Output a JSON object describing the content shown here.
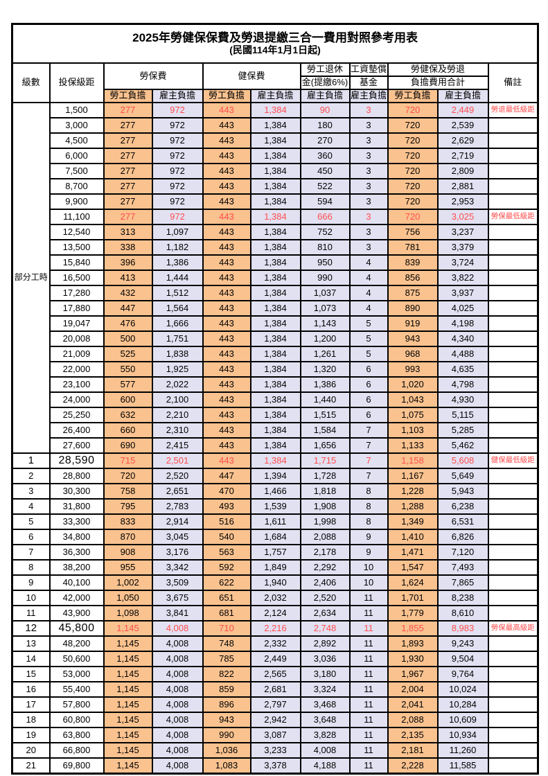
{
  "title": "2025年勞健保保費及勞退提繳三合一費用對照參考用表",
  "subtitle": "(民國114年1月1日起)",
  "colors": {
    "worker_bg": "#F9C28F",
    "employer_bg": "#E2E1F2",
    "red": "#FF4D4D",
    "border": "#000000"
  },
  "header": {
    "level": "級數",
    "bracket": "投保級距",
    "labor_insurance": "勞保費",
    "health_insurance": "健保費",
    "pension_line1": "勞工退休",
    "pension_line2": "金(提繳6%)",
    "wage_fund_line1": "工資墊償",
    "wage_fund_line2": "基金",
    "total_line1": "勞健保及勞退",
    "total_line2": "負擔費用合計",
    "remark": "備註",
    "worker_share": "勞工負擔",
    "employer_share": "雇主負擔"
  },
  "part_time": {
    "label": "部分工時",
    "rowspan": 23
  },
  "rows": [
    {
      "level": "",
      "bracket": "1,500",
      "liw": "277",
      "lie": "972",
      "hiw": "443",
      "hie": "1,384",
      "pen": "90",
      "fund": "3",
      "tw": "720",
      "te": "2,449",
      "remark": "勞退最低級距",
      "hl": true
    },
    {
      "level": "",
      "bracket": "3,000",
      "liw": "277",
      "lie": "972",
      "hiw": "443",
      "hie": "1,384",
      "pen": "180",
      "fund": "3",
      "tw": "720",
      "te": "2,539",
      "remark": ""
    },
    {
      "level": "",
      "bracket": "4,500",
      "liw": "277",
      "lie": "972",
      "hiw": "443",
      "hie": "1,384",
      "pen": "270",
      "fund": "3",
      "tw": "720",
      "te": "2,629",
      "remark": ""
    },
    {
      "level": "",
      "bracket": "6,000",
      "liw": "277",
      "lie": "972",
      "hiw": "443",
      "hie": "1,384",
      "pen": "360",
      "fund": "3",
      "tw": "720",
      "te": "2,719",
      "remark": ""
    },
    {
      "level": "",
      "bracket": "7,500",
      "liw": "277",
      "lie": "972",
      "hiw": "443",
      "hie": "1,384",
      "pen": "450",
      "fund": "3",
      "tw": "720",
      "te": "2,809",
      "remark": ""
    },
    {
      "level": "",
      "bracket": "8,700",
      "liw": "277",
      "lie": "972",
      "hiw": "443",
      "hie": "1,384",
      "pen": "522",
      "fund": "3",
      "tw": "720",
      "te": "2,881",
      "remark": ""
    },
    {
      "level": "",
      "bracket": "9,900",
      "liw": "277",
      "lie": "972",
      "hiw": "443",
      "hie": "1,384",
      "pen": "594",
      "fund": "3",
      "tw": "720",
      "te": "2,953",
      "remark": ""
    },
    {
      "level": "",
      "bracket": "11,100",
      "liw": "277",
      "lie": "972",
      "hiw": "443",
      "hie": "1,384",
      "pen": "666",
      "fund": "3",
      "tw": "720",
      "te": "3,025",
      "remark": "勞保最低級距",
      "hl": true
    },
    {
      "level": "",
      "bracket": "12,540",
      "liw": "313",
      "lie": "1,097",
      "hiw": "443",
      "hie": "1,384",
      "pen": "752",
      "fund": "3",
      "tw": "756",
      "te": "3,237",
      "remark": ""
    },
    {
      "level": "",
      "bracket": "13,500",
      "liw": "338",
      "lie": "1,182",
      "hiw": "443",
      "hie": "1,384",
      "pen": "810",
      "fund": "3",
      "tw": "781",
      "te": "3,379",
      "remark": ""
    },
    {
      "level": "",
      "bracket": "15,840",
      "liw": "396",
      "lie": "1,386",
      "hiw": "443",
      "hie": "1,384",
      "pen": "950",
      "fund": "4",
      "tw": "839",
      "te": "3,724",
      "remark": ""
    },
    {
      "level": "",
      "bracket": "16,500",
      "liw": "413",
      "lie": "1,444",
      "hiw": "443",
      "hie": "1,384",
      "pen": "990",
      "fund": "4",
      "tw": "856",
      "te": "3,822",
      "remark": ""
    },
    {
      "level": "",
      "bracket": "17,280",
      "liw": "432",
      "lie": "1,512",
      "hiw": "443",
      "hie": "1,384",
      "pen": "1,037",
      "fund": "4",
      "tw": "875",
      "te": "3,937",
      "remark": ""
    },
    {
      "level": "",
      "bracket": "17,880",
      "liw": "447",
      "lie": "1,564",
      "hiw": "443",
      "hie": "1,384",
      "pen": "1,073",
      "fund": "4",
      "tw": "890",
      "te": "4,025",
      "remark": ""
    },
    {
      "level": "",
      "bracket": "19,047",
      "liw": "476",
      "lie": "1,666",
      "hiw": "443",
      "hie": "1,384",
      "pen": "1,143",
      "fund": "5",
      "tw": "919",
      "te": "4,198",
      "remark": ""
    },
    {
      "level": "",
      "bracket": "20,008",
      "liw": "500",
      "lie": "1,751",
      "hiw": "443",
      "hie": "1,384",
      "pen": "1,200",
      "fund": "5",
      "tw": "943",
      "te": "4,340",
      "remark": ""
    },
    {
      "level": "",
      "bracket": "21,009",
      "liw": "525",
      "lie": "1,838",
      "hiw": "443",
      "hie": "1,384",
      "pen": "1,261",
      "fund": "5",
      "tw": "968",
      "te": "4,488",
      "remark": ""
    },
    {
      "level": "",
      "bracket": "22,000",
      "liw": "550",
      "lie": "1,925",
      "hiw": "443",
      "hie": "1,384",
      "pen": "1,320",
      "fund": "6",
      "tw": "993",
      "te": "4,635",
      "remark": ""
    },
    {
      "level": "",
      "bracket": "23,100",
      "liw": "577",
      "lie": "2,022",
      "hiw": "443",
      "hie": "1,384",
      "pen": "1,386",
      "fund": "6",
      "tw": "1,020",
      "te": "4,798",
      "remark": ""
    },
    {
      "level": "",
      "bracket": "24,000",
      "liw": "600",
      "lie": "2,100",
      "hiw": "443",
      "hie": "1,384",
      "pen": "1,440",
      "fund": "6",
      "tw": "1,043",
      "te": "4,930",
      "remark": ""
    },
    {
      "level": "",
      "bracket": "25,250",
      "liw": "632",
      "lie": "2,210",
      "hiw": "443",
      "hie": "1,384",
      "pen": "1,515",
      "fund": "6",
      "tw": "1,075",
      "te": "5,115",
      "remark": ""
    },
    {
      "level": "",
      "bracket": "26,400",
      "liw": "660",
      "lie": "2,310",
      "hiw": "443",
      "hie": "1,384",
      "pen": "1,584",
      "fund": "7",
      "tw": "1,103",
      "te": "5,285",
      "remark": ""
    },
    {
      "level": "",
      "bracket": "27,600",
      "liw": "690",
      "lie": "2,415",
      "hiw": "443",
      "hie": "1,384",
      "pen": "1,656",
      "fund": "7",
      "tw": "1,133",
      "te": "5,462",
      "remark": ""
    },
    {
      "level": "1",
      "bracket": "28,590",
      "liw": "715",
      "lie": "2,501",
      "hiw": "443",
      "hie": "1,384",
      "pen": "1,715",
      "fund": "7",
      "tw": "1,158",
      "te": "5,608",
      "remark": "健保最低級距",
      "hl": true,
      "big": true
    },
    {
      "level": "2",
      "bracket": "28,800",
      "liw": "720",
      "lie": "2,520",
      "hiw": "447",
      "hie": "1,394",
      "pen": "1,728",
      "fund": "7",
      "tw": "1,167",
      "te": "5,649",
      "remark": ""
    },
    {
      "level": "3",
      "bracket": "30,300",
      "liw": "758",
      "lie": "2,651",
      "hiw": "470",
      "hie": "1,466",
      "pen": "1,818",
      "fund": "8",
      "tw": "1,228",
      "te": "5,943",
      "remark": ""
    },
    {
      "level": "4",
      "bracket": "31,800",
      "liw": "795",
      "lie": "2,783",
      "hiw": "493",
      "hie": "1,539",
      "pen": "1,908",
      "fund": "8",
      "tw": "1,288",
      "te": "6,238",
      "remark": ""
    },
    {
      "level": "5",
      "bracket": "33,300",
      "liw": "833",
      "lie": "2,914",
      "hiw": "516",
      "hie": "1,611",
      "pen": "1,998",
      "fund": "8",
      "tw": "1,349",
      "te": "6,531",
      "remark": ""
    },
    {
      "level": "6",
      "bracket": "34,800",
      "liw": "870",
      "lie": "3,045",
      "hiw": "540",
      "hie": "1,684",
      "pen": "2,088",
      "fund": "9",
      "tw": "1,410",
      "te": "6,826",
      "remark": ""
    },
    {
      "level": "7",
      "bracket": "36,300",
      "liw": "908",
      "lie": "3,176",
      "hiw": "563",
      "hie": "1,757",
      "pen": "2,178",
      "fund": "9",
      "tw": "1,471",
      "te": "7,120",
      "remark": ""
    },
    {
      "level": "8",
      "bracket": "38,200",
      "liw": "955",
      "lie": "3,342",
      "hiw": "592",
      "hie": "1,849",
      "pen": "2,292",
      "fund": "10",
      "tw": "1,547",
      "te": "7,493",
      "remark": ""
    },
    {
      "level": "9",
      "bracket": "40,100",
      "liw": "1,002",
      "lie": "3,509",
      "hiw": "622",
      "hie": "1,940",
      "pen": "2,406",
      "fund": "10",
      "tw": "1,624",
      "te": "7,865",
      "remark": ""
    },
    {
      "level": "10",
      "bracket": "42,000",
      "liw": "1,050",
      "lie": "3,675",
      "hiw": "651",
      "hie": "2,032",
      "pen": "2,520",
      "fund": "11",
      "tw": "1,701",
      "te": "8,238",
      "remark": ""
    },
    {
      "level": "11",
      "bracket": "43,900",
      "liw": "1,098",
      "lie": "3,841",
      "hiw": "681",
      "hie": "2,124",
      "pen": "2,634",
      "fund": "11",
      "tw": "1,779",
      "te": "8,610",
      "remark": ""
    },
    {
      "level": "12",
      "bracket": "45,800",
      "liw": "1,145",
      "lie": "4,008",
      "hiw": "710",
      "hie": "2,216",
      "pen": "2,748",
      "fund": "11",
      "tw": "1,855",
      "te": "8,983",
      "remark": "勞保最高級距",
      "hl": true,
      "big": true
    },
    {
      "level": "13",
      "bracket": "48,200",
      "liw": "1,145",
      "lie": "4,008",
      "hiw": "748",
      "hie": "2,332",
      "pen": "2,892",
      "fund": "11",
      "tw": "1,893",
      "te": "9,243",
      "remark": ""
    },
    {
      "level": "14",
      "bracket": "50,600",
      "liw": "1,145",
      "lie": "4,008",
      "hiw": "785",
      "hie": "2,449",
      "pen": "3,036",
      "fund": "11",
      "tw": "1,930",
      "te": "9,504",
      "remark": ""
    },
    {
      "level": "15",
      "bracket": "53,000",
      "liw": "1,145",
      "lie": "4,008",
      "hiw": "822",
      "hie": "2,565",
      "pen": "3,180",
      "fund": "11",
      "tw": "1,967",
      "te": "9,764",
      "remark": ""
    },
    {
      "level": "16",
      "bracket": "55,400",
      "liw": "1,145",
      "lie": "4,008",
      "hiw": "859",
      "hie": "2,681",
      "pen": "3,324",
      "fund": "11",
      "tw": "2,004",
      "te": "10,024",
      "remark": ""
    },
    {
      "level": "17",
      "bracket": "57,800",
      "liw": "1,145",
      "lie": "4,008",
      "hiw": "896",
      "hie": "2,797",
      "pen": "3,468",
      "fund": "11",
      "tw": "2,041",
      "te": "10,284",
      "remark": ""
    },
    {
      "level": "18",
      "bracket": "60,800",
      "liw": "1,145",
      "lie": "4,008",
      "hiw": "943",
      "hie": "2,942",
      "pen": "3,648",
      "fund": "11",
      "tw": "2,088",
      "te": "10,609",
      "remark": ""
    },
    {
      "level": "19",
      "bracket": "63,800",
      "liw": "1,145",
      "lie": "4,008",
      "hiw": "990",
      "hie": "3,087",
      "pen": "3,828",
      "fund": "11",
      "tw": "2,135",
      "te": "10,934",
      "remark": ""
    },
    {
      "level": "20",
      "bracket": "66,800",
      "liw": "1,145",
      "lie": "4,008",
      "hiw": "1,036",
      "hie": "3,233",
      "pen": "4,008",
      "fund": "11",
      "tw": "2,181",
      "te": "11,260",
      "remark": ""
    },
    {
      "level": "21",
      "bracket": "69,800",
      "liw": "1,145",
      "lie": "4,008",
      "hiw": "1,083",
      "hie": "3,378",
      "pen": "4,188",
      "fund": "11",
      "tw": "2,228",
      "te": "11,585",
      "remark": ""
    }
  ]
}
